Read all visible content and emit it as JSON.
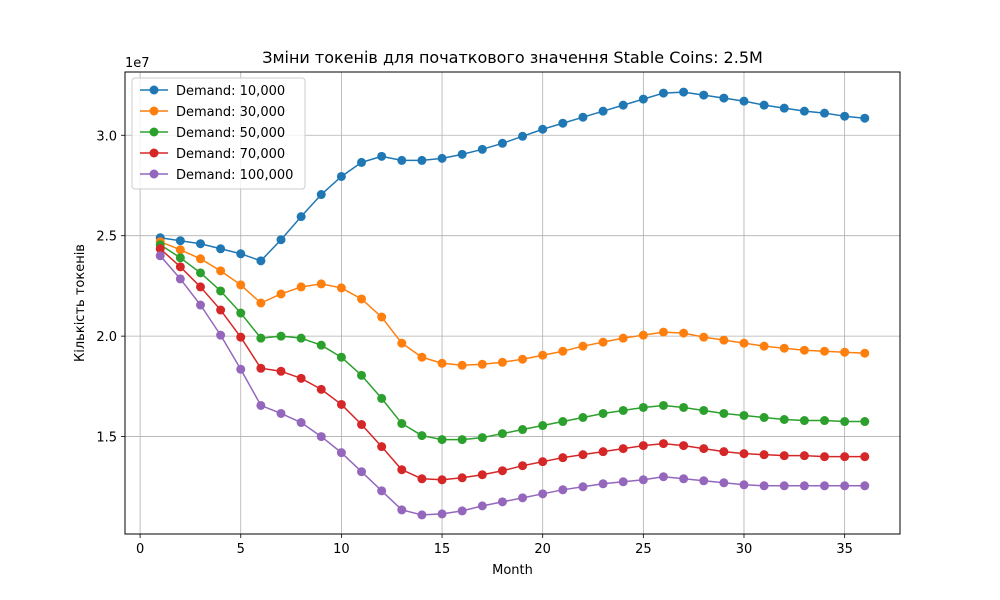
{
  "chart_data": {
    "type": "line",
    "title": "Зміни токенів для початкового значення Stable Coins: 2.5M",
    "xlabel": "Month",
    "ylabel": "Кількість токенів",
    "y_offset_label": "1e7",
    "y_scale_factor": 10000000,
    "xlim": [
      -0.75,
      37.75
    ],
    "ylim": [
      10150000,
      33150000
    ],
    "x_ticks": [
      0,
      5,
      10,
      15,
      20,
      25,
      30,
      35
    ],
    "y_ticks": [
      15000000,
      20000000,
      25000000,
      30000000
    ],
    "y_tick_labels": [
      "1.5",
      "2.0",
      "2.5",
      "3.0"
    ],
    "grid": true,
    "legend_position": "top-left",
    "x": [
      1,
      2,
      3,
      4,
      5,
      6,
      7,
      8,
      9,
      10,
      11,
      12,
      13,
      14,
      15,
      16,
      17,
      18,
      19,
      20,
      21,
      22,
      23,
      24,
      25,
      26,
      27,
      28,
      29,
      30,
      31,
      32,
      33,
      34,
      35,
      36
    ],
    "series": [
      {
        "name": "Demand: 10,000",
        "color": "#1f77b4",
        "values": [
          24900000,
          24750000,
          24600000,
          24350000,
          24100000,
          23750000,
          24800000,
          25950000,
          27050000,
          27950000,
          28650000,
          28950000,
          28750000,
          28750000,
          28850000,
          29050000,
          29300000,
          29600000,
          29950000,
          30300000,
          30600000,
          30900000,
          31200000,
          31500000,
          31800000,
          32100000,
          32150000,
          32000000,
          31850000,
          31700000,
          31500000,
          31350000,
          31200000,
          31100000,
          30950000,
          30850000
        ]
      },
      {
        "name": "Demand: 30,000",
        "color": "#ff7f0e",
        "values": [
          24700000,
          24300000,
          23850000,
          23250000,
          22550000,
          21650000,
          22100000,
          22450000,
          22600000,
          22400000,
          21850000,
          20950000,
          19650000,
          18950000,
          18650000,
          18550000,
          18600000,
          18700000,
          18850000,
          19050000,
          19250000,
          19500000,
          19700000,
          19900000,
          20050000,
          20200000,
          20150000,
          19950000,
          19800000,
          19650000,
          19500000,
          19400000,
          19300000,
          19250000,
          19200000,
          19150000
        ]
      },
      {
        "name": "Demand: 50,000",
        "color": "#2ca02c",
        "values": [
          24550000,
          23900000,
          23150000,
          22250000,
          21150000,
          19900000,
          20000000,
          19900000,
          19550000,
          18950000,
          18050000,
          16900000,
          15650000,
          15050000,
          14850000,
          14850000,
          14950000,
          15150000,
          15350000,
          15550000,
          15750000,
          15950000,
          16150000,
          16300000,
          16450000,
          16550000,
          16450000,
          16300000,
          16150000,
          16050000,
          15950000,
          15850000,
          15800000,
          15800000,
          15750000,
          15750000
        ]
      },
      {
        "name": "Demand: 70,000",
        "color": "#d62728",
        "values": [
          24350000,
          23450000,
          22450000,
          21300000,
          19950000,
          18400000,
          18250000,
          17900000,
          17350000,
          16600000,
          15600000,
          14500000,
          13350000,
          12900000,
          12850000,
          12950000,
          13100000,
          13300000,
          13550000,
          13750000,
          13950000,
          14100000,
          14250000,
          14400000,
          14550000,
          14650000,
          14550000,
          14400000,
          14250000,
          14150000,
          14100000,
          14050000,
          14050000,
          14000000,
          14000000,
          14000000
        ]
      },
      {
        "name": "Demand: 100,000",
        "color": "#9467bd",
        "values": [
          24000000,
          22850000,
          21550000,
          20050000,
          18350000,
          16550000,
          16150000,
          15700000,
          15000000,
          14200000,
          13250000,
          12300000,
          11350000,
          11100000,
          11150000,
          11300000,
          11550000,
          11750000,
          11950000,
          12150000,
          12350000,
          12500000,
          12650000,
          12750000,
          12850000,
          13000000,
          12900000,
          12800000,
          12700000,
          12600000,
          12550000,
          12550000,
          12550000,
          12550000,
          12550000,
          12550000
        ]
      }
    ]
  }
}
